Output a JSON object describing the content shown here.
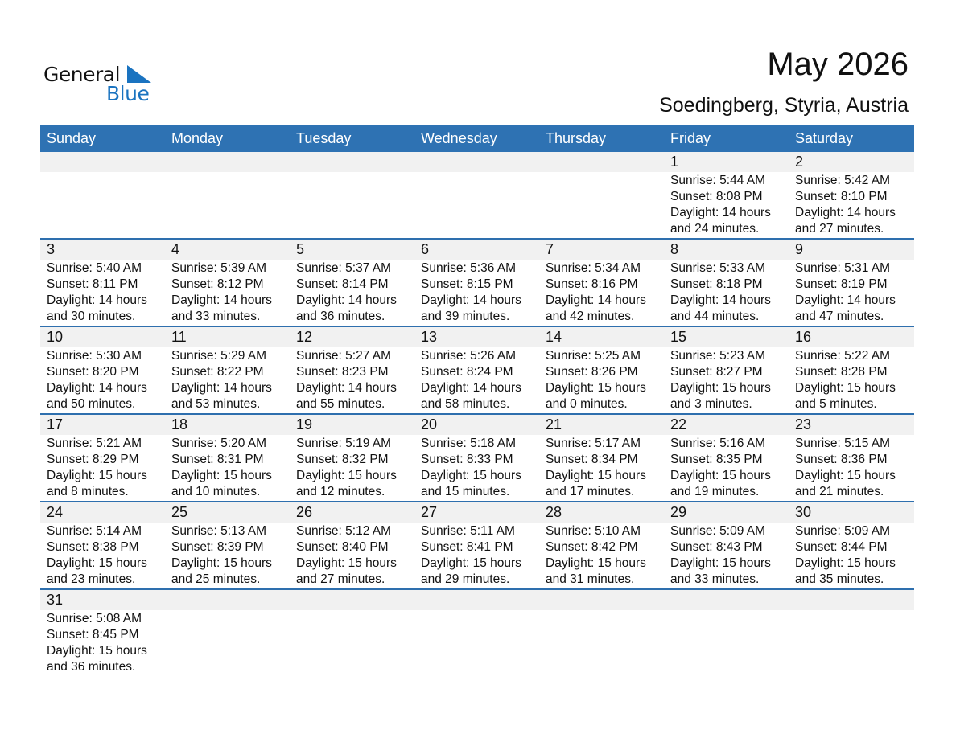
{
  "logo": {
    "text1": "General",
    "text2": "Blue",
    "accent": "#1a73c0"
  },
  "title": "May 2026",
  "subtitle": "Soedingberg, Styria, Austria",
  "colors": {
    "header_bg": "#2e72b3",
    "date_strip": "#f1f1f1",
    "row_border": "#2e6fae"
  },
  "weekdays": [
    "Sunday",
    "Monday",
    "Tuesday",
    "Wednesday",
    "Thursday",
    "Friday",
    "Saturday"
  ],
  "weeks": [
    [
      null,
      null,
      null,
      null,
      null,
      {
        "day": "1",
        "sunrise": "Sunrise: 5:44 AM",
        "sunset": "Sunset: 8:08 PM",
        "daylight": "Daylight: 14 hours",
        "minutes": "and 24 minutes."
      },
      {
        "day": "2",
        "sunrise": "Sunrise: 5:42 AM",
        "sunset": "Sunset: 8:10 PM",
        "daylight": "Daylight: 14 hours",
        "minutes": "and 27 minutes."
      }
    ],
    [
      {
        "day": "3",
        "sunrise": "Sunrise: 5:40 AM",
        "sunset": "Sunset: 8:11 PM",
        "daylight": "Daylight: 14 hours",
        "minutes": "and 30 minutes."
      },
      {
        "day": "4",
        "sunrise": "Sunrise: 5:39 AM",
        "sunset": "Sunset: 8:12 PM",
        "daylight": "Daylight: 14 hours",
        "minutes": "and 33 minutes."
      },
      {
        "day": "5",
        "sunrise": "Sunrise: 5:37 AM",
        "sunset": "Sunset: 8:14 PM",
        "daylight": "Daylight: 14 hours",
        "minutes": "and 36 minutes."
      },
      {
        "day": "6",
        "sunrise": "Sunrise: 5:36 AM",
        "sunset": "Sunset: 8:15 PM",
        "daylight": "Daylight: 14 hours",
        "minutes": "and 39 minutes."
      },
      {
        "day": "7",
        "sunrise": "Sunrise: 5:34 AM",
        "sunset": "Sunset: 8:16 PM",
        "daylight": "Daylight: 14 hours",
        "minutes": "and 42 minutes."
      },
      {
        "day": "8",
        "sunrise": "Sunrise: 5:33 AM",
        "sunset": "Sunset: 8:18 PM",
        "daylight": "Daylight: 14 hours",
        "minutes": "and 44 minutes."
      },
      {
        "day": "9",
        "sunrise": "Sunrise: 5:31 AM",
        "sunset": "Sunset: 8:19 PM",
        "daylight": "Daylight: 14 hours",
        "minutes": "and 47 minutes."
      }
    ],
    [
      {
        "day": "10",
        "sunrise": "Sunrise: 5:30 AM",
        "sunset": "Sunset: 8:20 PM",
        "daylight": "Daylight: 14 hours",
        "minutes": "and 50 minutes."
      },
      {
        "day": "11",
        "sunrise": "Sunrise: 5:29 AM",
        "sunset": "Sunset: 8:22 PM",
        "daylight": "Daylight: 14 hours",
        "minutes": "and 53 minutes."
      },
      {
        "day": "12",
        "sunrise": "Sunrise: 5:27 AM",
        "sunset": "Sunset: 8:23 PM",
        "daylight": "Daylight: 14 hours",
        "minutes": "and 55 minutes."
      },
      {
        "day": "13",
        "sunrise": "Sunrise: 5:26 AM",
        "sunset": "Sunset: 8:24 PM",
        "daylight": "Daylight: 14 hours",
        "minutes": "and 58 minutes."
      },
      {
        "day": "14",
        "sunrise": "Sunrise: 5:25 AM",
        "sunset": "Sunset: 8:26 PM",
        "daylight": "Daylight: 15 hours",
        "minutes": "and 0 minutes."
      },
      {
        "day": "15",
        "sunrise": "Sunrise: 5:23 AM",
        "sunset": "Sunset: 8:27 PM",
        "daylight": "Daylight: 15 hours",
        "minutes": "and 3 minutes."
      },
      {
        "day": "16",
        "sunrise": "Sunrise: 5:22 AM",
        "sunset": "Sunset: 8:28 PM",
        "daylight": "Daylight: 15 hours",
        "minutes": "and 5 minutes."
      }
    ],
    [
      {
        "day": "17",
        "sunrise": "Sunrise: 5:21 AM",
        "sunset": "Sunset: 8:29 PM",
        "daylight": "Daylight: 15 hours",
        "minutes": "and 8 minutes."
      },
      {
        "day": "18",
        "sunrise": "Sunrise: 5:20 AM",
        "sunset": "Sunset: 8:31 PM",
        "daylight": "Daylight: 15 hours",
        "minutes": "and 10 minutes."
      },
      {
        "day": "19",
        "sunrise": "Sunrise: 5:19 AM",
        "sunset": "Sunset: 8:32 PM",
        "daylight": "Daylight: 15 hours",
        "minutes": "and 12 minutes."
      },
      {
        "day": "20",
        "sunrise": "Sunrise: 5:18 AM",
        "sunset": "Sunset: 8:33 PM",
        "daylight": "Daylight: 15 hours",
        "minutes": "and 15 minutes."
      },
      {
        "day": "21",
        "sunrise": "Sunrise: 5:17 AM",
        "sunset": "Sunset: 8:34 PM",
        "daylight": "Daylight: 15 hours",
        "minutes": "and 17 minutes."
      },
      {
        "day": "22",
        "sunrise": "Sunrise: 5:16 AM",
        "sunset": "Sunset: 8:35 PM",
        "daylight": "Daylight: 15 hours",
        "minutes": "and 19 minutes."
      },
      {
        "day": "23",
        "sunrise": "Sunrise: 5:15 AM",
        "sunset": "Sunset: 8:36 PM",
        "daylight": "Daylight: 15 hours",
        "minutes": "and 21 minutes."
      }
    ],
    [
      {
        "day": "24",
        "sunrise": "Sunrise: 5:14 AM",
        "sunset": "Sunset: 8:38 PM",
        "daylight": "Daylight: 15 hours",
        "minutes": "and 23 minutes."
      },
      {
        "day": "25",
        "sunrise": "Sunrise: 5:13 AM",
        "sunset": "Sunset: 8:39 PM",
        "daylight": "Daylight: 15 hours",
        "minutes": "and 25 minutes."
      },
      {
        "day": "26",
        "sunrise": "Sunrise: 5:12 AM",
        "sunset": "Sunset: 8:40 PM",
        "daylight": "Daylight: 15 hours",
        "minutes": "and 27 minutes."
      },
      {
        "day": "27",
        "sunrise": "Sunrise: 5:11 AM",
        "sunset": "Sunset: 8:41 PM",
        "daylight": "Daylight: 15 hours",
        "minutes": "and 29 minutes."
      },
      {
        "day": "28",
        "sunrise": "Sunrise: 5:10 AM",
        "sunset": "Sunset: 8:42 PM",
        "daylight": "Daylight: 15 hours",
        "minutes": "and 31 minutes."
      },
      {
        "day": "29",
        "sunrise": "Sunrise: 5:09 AM",
        "sunset": "Sunset: 8:43 PM",
        "daylight": "Daylight: 15 hours",
        "minutes": "and 33 minutes."
      },
      {
        "day": "30",
        "sunrise": "Sunrise: 5:09 AM",
        "sunset": "Sunset: 8:44 PM",
        "daylight": "Daylight: 15 hours",
        "minutes": "and 35 minutes."
      }
    ],
    [
      {
        "day": "31",
        "sunrise": "Sunrise: 5:08 AM",
        "sunset": "Sunset: 8:45 PM",
        "daylight": "Daylight: 15 hours",
        "minutes": "and 36 minutes."
      },
      null,
      null,
      null,
      null,
      null,
      null
    ]
  ]
}
